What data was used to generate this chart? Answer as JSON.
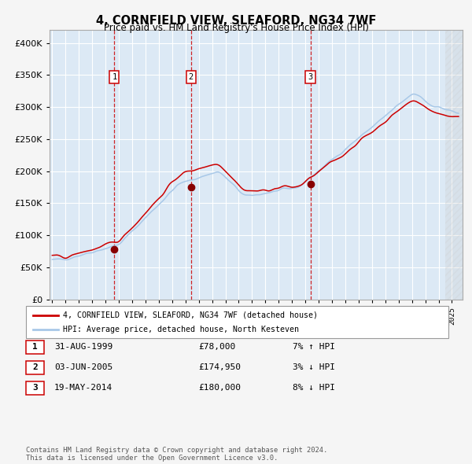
{
  "title": "4, CORNFIELD VIEW, SLEAFORD, NG34 7WF",
  "subtitle": "Price paid vs. HM Land Registry's House Price Index (HPI)",
  "fig_bg_color": "#f5f5f5",
  "plot_bg_color": "#dce9f5",
  "hpi_color": "#a8c8e8",
  "price_color": "#cc0000",
  "marker_color": "#880000",
  "grid_color": "#ffffff",
  "ylim": [
    0,
    420000
  ],
  "yticks": [
    0,
    50000,
    100000,
    150000,
    200000,
    250000,
    300000,
    350000,
    400000
  ],
  "xlim_start": 1994.8,
  "xlim_end": 2025.8,
  "sale1_x": 1999.667,
  "sale1_y": 78000,
  "sale2_x": 2005.42,
  "sale2_y": 174950,
  "sale3_x": 2014.375,
  "sale3_y": 180000,
  "legend_line1": "4, CORNFIELD VIEW, SLEAFORD, NG34 7WF (detached house)",
  "legend_line2": "HPI: Average price, detached house, North Kesteven",
  "table_rows": [
    [
      "1",
      "31-AUG-1999",
      "£78,000",
      "7% ↑ HPI"
    ],
    [
      "2",
      "03-JUN-2005",
      "£174,950",
      "3% ↓ HPI"
    ],
    [
      "3",
      "19-MAY-2014",
      "£180,000",
      "8% ↓ HPI"
    ]
  ],
  "footnote": "Contains HM Land Registry data © Crown copyright and database right 2024.\nThis data is licensed under the Open Government Licence v3.0.",
  "xtick_years": [
    1995,
    1996,
    1997,
    1998,
    1999,
    2000,
    2001,
    2002,
    2003,
    2004,
    2005,
    2006,
    2007,
    2008,
    2009,
    2010,
    2011,
    2012,
    2013,
    2014,
    2015,
    2016,
    2017,
    2018,
    2019,
    2020,
    2021,
    2022,
    2023,
    2024,
    2025
  ]
}
